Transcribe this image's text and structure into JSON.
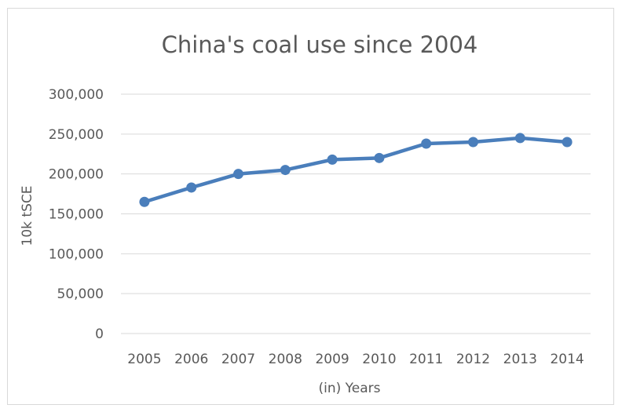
{
  "chart_data": {
    "type": "line",
    "title": "China's coal use since 2004",
    "xlabel": "(in) Years",
    "ylabel": "10k tSCE",
    "categories": [
      "2005",
      "2006",
      "2007",
      "2008",
      "2009",
      "2010",
      "2011",
      "2012",
      "2013",
      "2014"
    ],
    "series": [
      {
        "values": [
          165000,
          183000,
          200000,
          205000,
          218000,
          220000,
          238000,
          240000,
          245000,
          240000
        ],
        "color": "#4a7ebb"
      }
    ],
    "ylim": [
      0,
      300000
    ],
    "yticks": [
      0,
      50000,
      100000,
      150000,
      200000,
      250000,
      300000
    ],
    "ytick_labels": [
      "0",
      "50,000",
      "100,000",
      "150,000",
      "200,000",
      "250,000",
      "300,000"
    ],
    "grid": true,
    "legend": "none"
  }
}
